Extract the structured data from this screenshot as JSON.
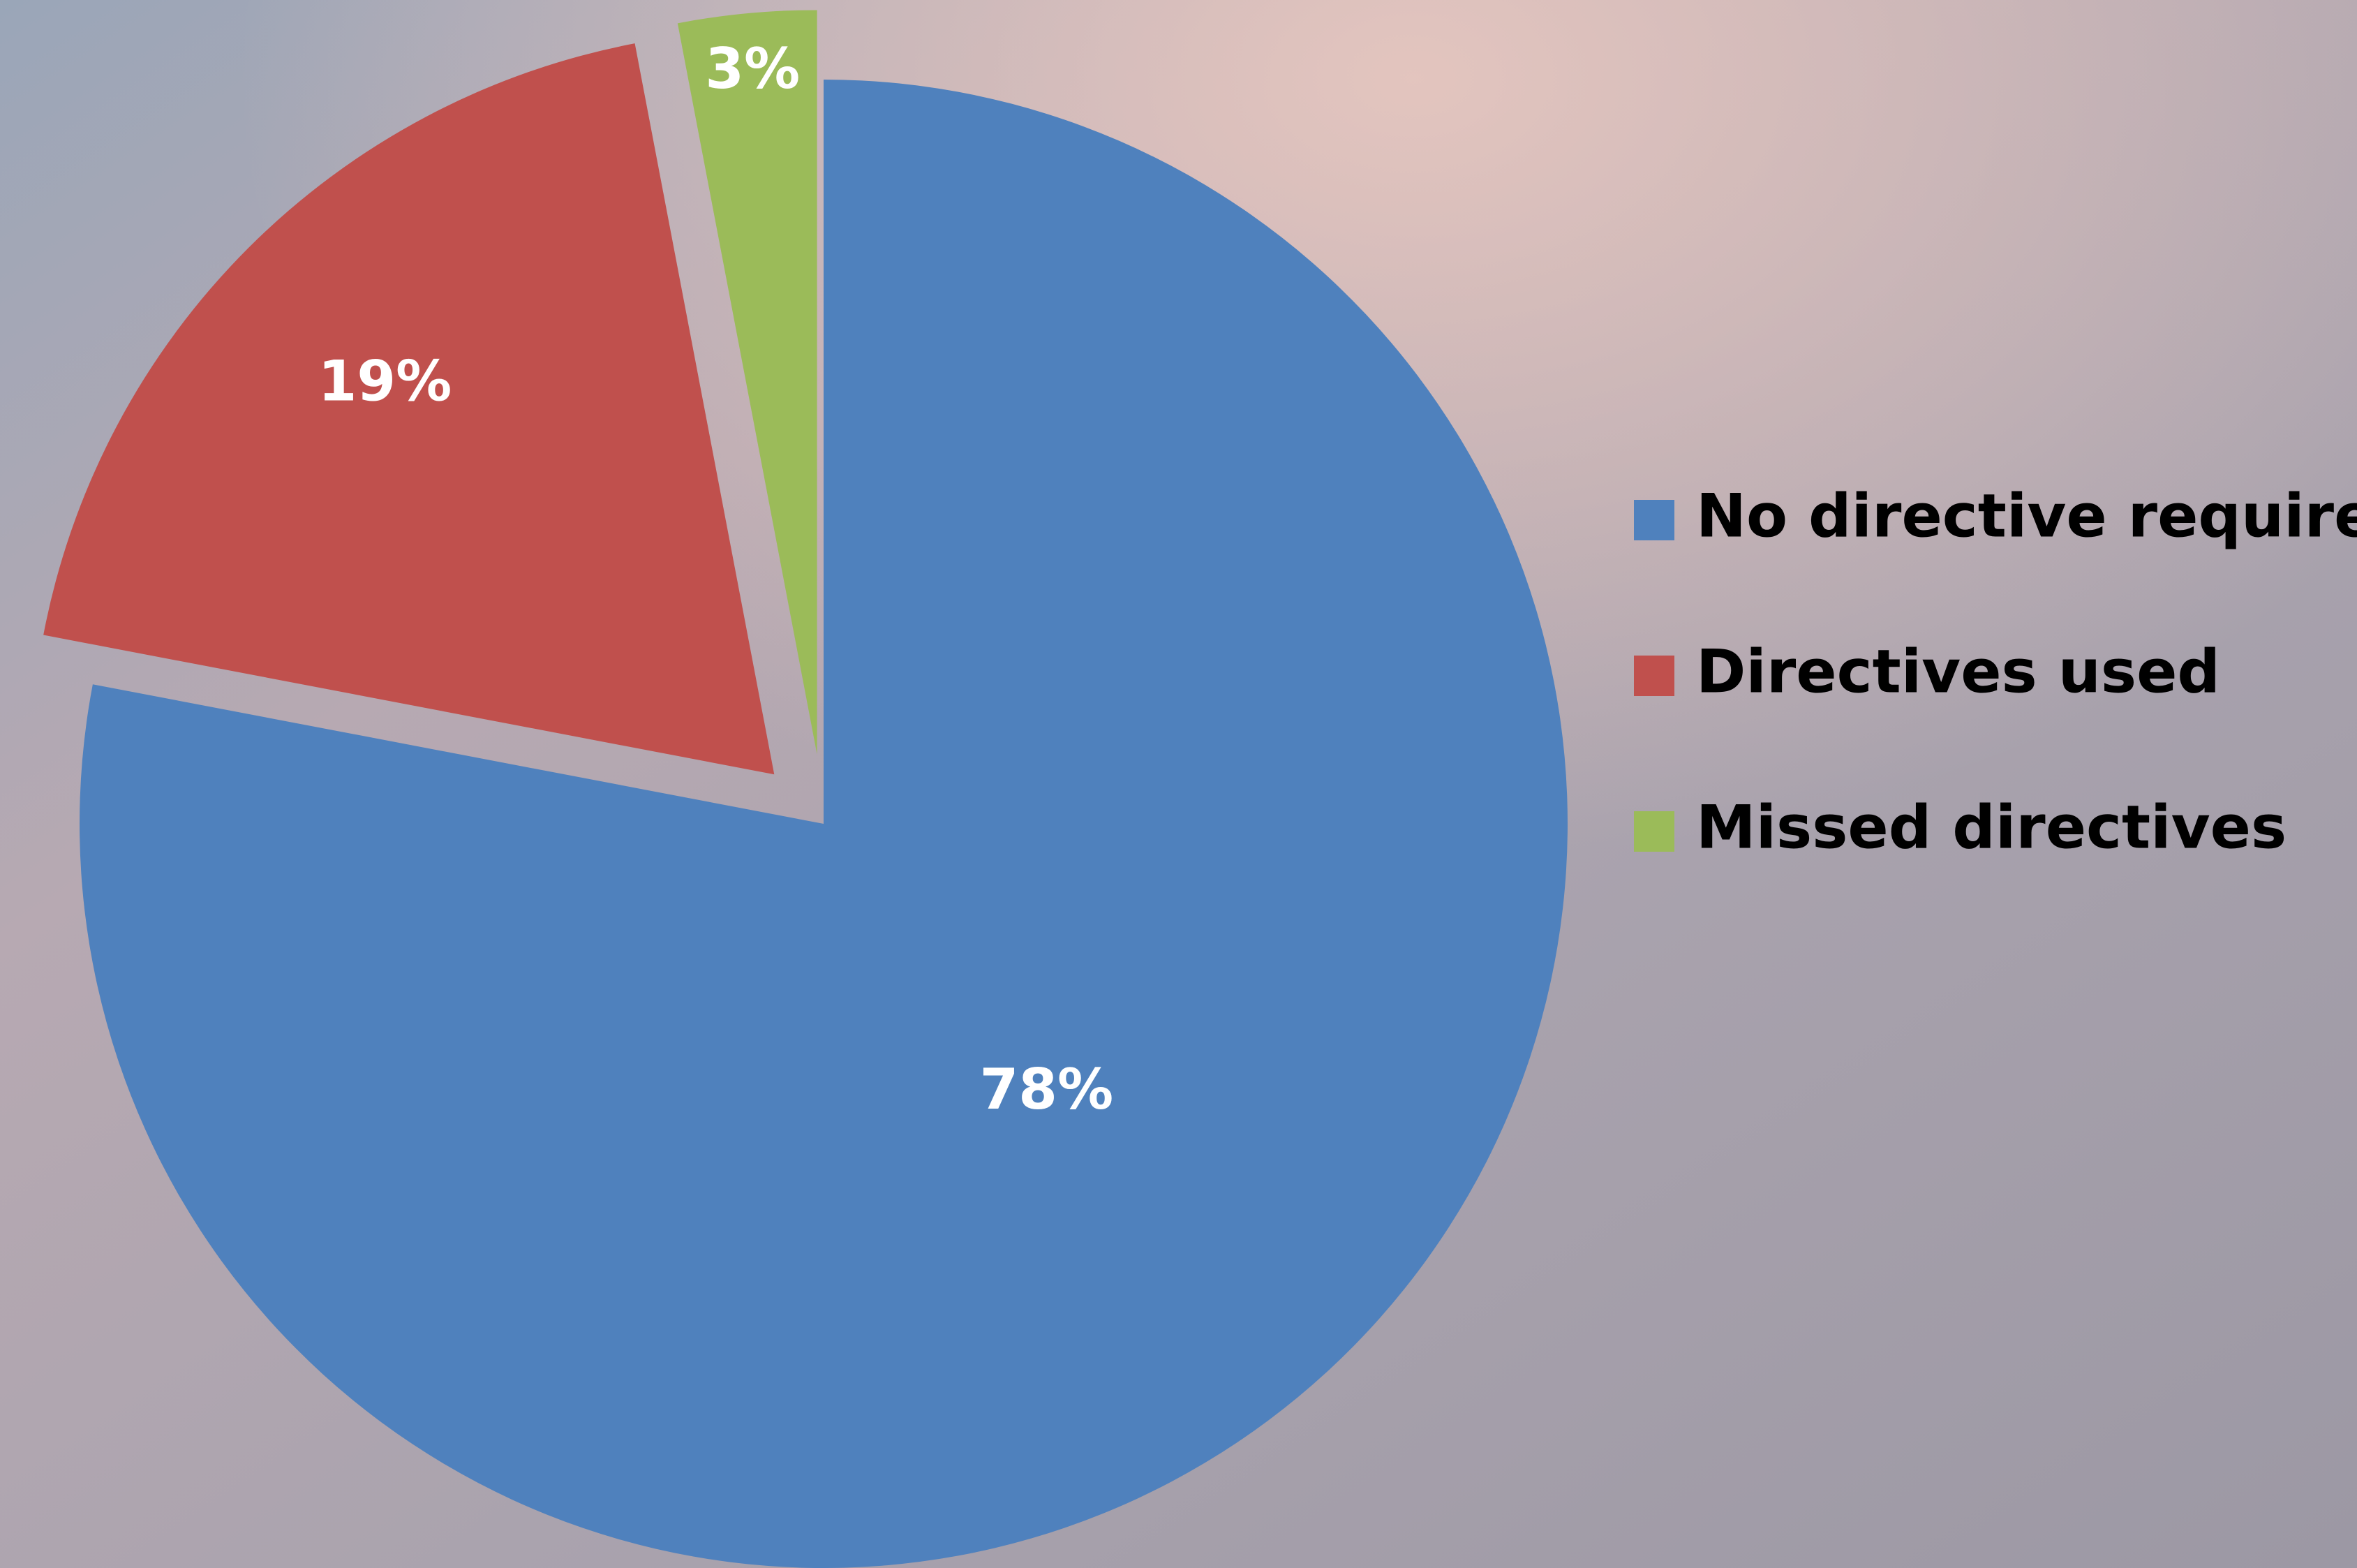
{
  "chart_data": {
    "type": "pie",
    "categories": [
      "No directive required",
      "Directives used",
      "Missed directives"
    ],
    "values": [
      78,
      19,
      3
    ],
    "value_labels": [
      "78%",
      "19%",
      "3%"
    ],
    "colors": [
      "#4f81bd",
      "#c0504d",
      "#9bbb59"
    ],
    "legend": "right"
  }
}
